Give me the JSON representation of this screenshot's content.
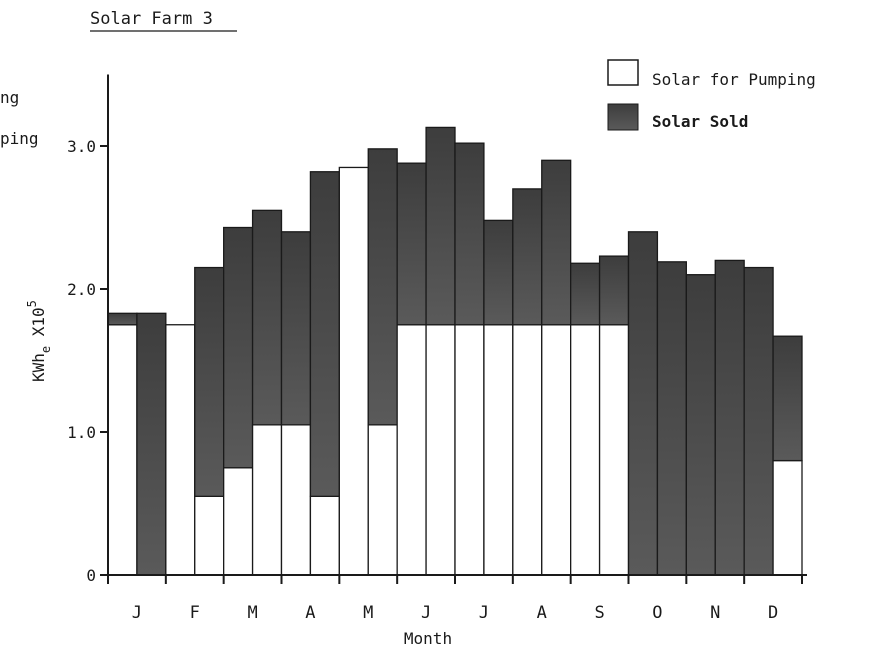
{
  "chart_data": {
    "type": "bar",
    "title": "Solar Farm 3",
    "partial_legend_fragments": [
      "ng",
      "ping"
    ],
    "xlabel": "Month",
    "ylabel": "KWh",
    "ylabel_subscript": "e",
    "ylabel_suffix": " X10",
    "ylabel_superscript": "5",
    "ylim": [
      0,
      3.5
    ],
    "yticks": [
      {
        "value": 0,
        "label": "0"
      },
      {
        "value": 1.0,
        "label": "1.0"
      },
      {
        "value": 2.0,
        "label": "2.0"
      },
      {
        "value": 3.0,
        "label": "3.0"
      }
    ],
    "month_labels": [
      "J",
      "F",
      "M",
      "A",
      "M",
      "J",
      "J",
      "A",
      "S",
      "O",
      "N",
      "D"
    ],
    "legend": {
      "placement": "top-right",
      "entries": [
        {
          "name": "Solar for Pumping",
          "color": "#ffffff"
        },
        {
          "name": "Solar Sold",
          "color": "#4a4a4a"
        }
      ]
    },
    "colors": {
      "sold": "#4a4a4a",
      "pumping": "#ffffff",
      "axis": "#1a1a1a"
    },
    "bars": [
      {
        "pumping": 1.75,
        "sold": 0.08
      },
      {
        "pumping": 0.0,
        "sold": 1.83
      },
      {
        "pumping": 1.75,
        "sold": 0.0
      },
      {
        "pumping": 0.55,
        "sold": 1.6
      },
      {
        "pumping": 0.75,
        "sold": 1.68
      },
      {
        "pumping": 1.05,
        "sold": 1.5
      },
      {
        "pumping": 1.05,
        "sold": 1.35
      },
      {
        "pumping": 0.55,
        "sold": 2.27
      },
      {
        "pumping": 2.85,
        "sold": 0.0
      },
      {
        "pumping": 1.05,
        "sold": 1.93
      },
      {
        "pumping": 1.75,
        "sold": 1.13
      },
      {
        "pumping": 1.75,
        "sold": 1.38
      },
      {
        "pumping": 1.75,
        "sold": 1.27
      },
      {
        "pumping": 1.75,
        "sold": 0.73
      },
      {
        "pumping": 1.75,
        "sold": 0.95
      },
      {
        "pumping": 1.75,
        "sold": 1.15
      },
      {
        "pumping": 1.75,
        "sold": 0.43
      },
      {
        "pumping": 1.75,
        "sold": 0.48
      },
      {
        "pumping": 0.0,
        "sold": 2.4
      },
      {
        "pumping": 0.0,
        "sold": 2.19
      },
      {
        "pumping": 0.0,
        "sold": 2.1
      },
      {
        "pumping": 0.0,
        "sold": 2.2
      },
      {
        "pumping": 0.0,
        "sold": 2.15
      },
      {
        "pumping": 0.8,
        "sold": 0.87
      }
    ]
  }
}
